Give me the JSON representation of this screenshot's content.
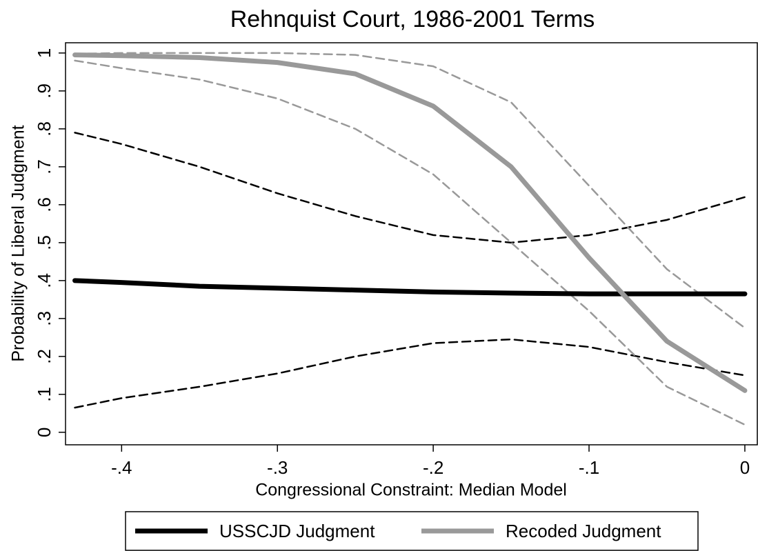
{
  "chart_data": {
    "type": "line",
    "title": "Rehnquist Court, 1986-2001 Terms",
    "x_label": "Congressional Constraint: Median Model",
    "y_label": "Probability of Liberal Judgment",
    "x": [
      -0.43,
      -0.4,
      -0.35,
      -0.3,
      -0.25,
      -0.2,
      -0.15,
      -0.1,
      -0.05,
      0
    ],
    "series": [
      {
        "color": "#000000",
        "dash": true,
        "width": 2.5,
        "values": [
          0.79,
          0.76,
          0.7,
          0.63,
          0.57,
          0.52,
          0.5,
          0.52,
          0.56,
          0.62
        ]
      },
      {
        "color": "#000000",
        "dash": true,
        "width": 2.5,
        "values": [
          0.065,
          0.09,
          0.12,
          0.155,
          0.2,
          0.235,
          0.245,
          0.225,
          0.185,
          0.15
        ]
      },
      {
        "color": "#999999",
        "dash": true,
        "width": 2.5,
        "values": [
          0.998,
          1.0,
          1.0,
          1.0,
          0.995,
          0.965,
          0.87,
          0.65,
          0.43,
          0.275
        ]
      },
      {
        "color": "#999999",
        "dash": true,
        "width": 2.5,
        "values": [
          0.98,
          0.96,
          0.93,
          0.88,
          0.8,
          0.68,
          0.5,
          0.32,
          0.12,
          0.02
        ]
      },
      {
        "name": "USSCJD Judgment",
        "color": "#000000",
        "dash": false,
        "width": 7,
        "values": [
          0.4,
          0.395,
          0.385,
          0.38,
          0.375,
          0.37,
          0.367,
          0.365,
          0.365,
          0.365
        ]
      },
      {
        "name": "Recoded Judgment",
        "color": "#999999",
        "dash": false,
        "width": 7,
        "values": [
          0.995,
          0.993,
          0.988,
          0.975,
          0.945,
          0.86,
          0.7,
          0.46,
          0.24,
          0.11
        ]
      }
    ],
    "xlim": [
      -0.436,
      0.008
    ],
    "ylim": [
      -0.033,
      1.027
    ],
    "xticks": [
      {
        "value": -0.4,
        "label": "-.4"
      },
      {
        "value": -0.3,
        "label": "-.3"
      },
      {
        "value": -0.2,
        "label": "-.2"
      },
      {
        "value": -0.1,
        "label": "-.1"
      },
      0
    ],
    "yticks": [
      0,
      {
        "value": 0.1,
        "label": ".1"
      },
      {
        "value": 0.2,
        "label": ".2"
      },
      {
        "value": 0.3,
        "label": ".3"
      },
      {
        "value": 0.4,
        "label": ".4"
      },
      {
        "value": 0.5,
        "label": ".5"
      },
      {
        "value": 0.6,
        "label": ".6"
      },
      {
        "value": 0.7,
        "label": ".7"
      },
      {
        "value": 0.8,
        "label": ".8"
      },
      {
        "value": 0.9,
        "label": ".9"
      },
      1
    ],
    "legend": "bottom"
  }
}
